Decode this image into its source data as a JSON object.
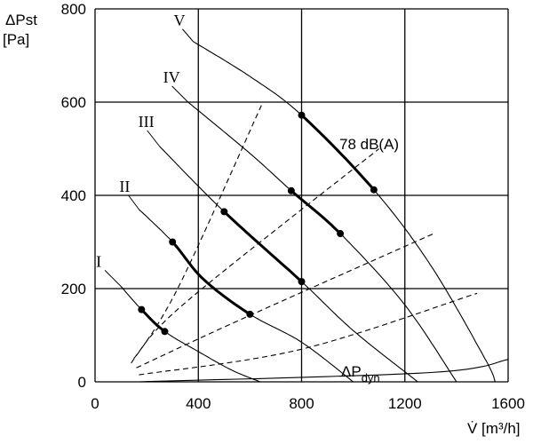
{
  "chart_data": {
    "type": "line",
    "xlabel": "V̇ [m³/h]",
    "ylabel_line1": "ΔPst",
    "ylabel_line2": "[Pa]",
    "xlim": [
      0,
      1600
    ],
    "ylim": [
      0,
      800
    ],
    "x_ticks": [
      0,
      400,
      800,
      1200,
      1600
    ],
    "y_ticks": [
      0,
      200,
      400,
      600,
      800
    ],
    "grid": true,
    "fan_curves": [
      {
        "name": "I",
        "points": [
          [
            100,
            205
          ],
          [
            180,
            155
          ],
          [
            270,
            108
          ],
          [
            400,
            65
          ],
          [
            530,
            25
          ],
          [
            640,
            0
          ]
        ],
        "bold_range": [
          180,
          270
        ]
      },
      {
        "name": "II",
        "points": [
          [
            170,
            370
          ],
          [
            300,
            300
          ],
          [
            420,
            220
          ],
          [
            600,
            145
          ],
          [
            800,
            85
          ],
          [
            1000,
            0
          ]
        ],
        "bold_range": [
          300,
          600
        ]
      },
      {
        "name": "III",
        "points": [
          [
            250,
            505
          ],
          [
            500,
            365
          ],
          [
            800,
            215
          ],
          [
            1000,
            110
          ],
          [
            1250,
            0
          ]
        ],
        "bold_range": [
          500,
          800
        ]
      },
      {
        "name": "IV",
        "points": [
          [
            360,
            600
          ],
          [
            600,
            490
          ],
          [
            760,
            410
          ],
          [
            950,
            318
          ],
          [
            1200,
            165
          ],
          [
            1400,
            0
          ]
        ],
        "bold_range": [
          760,
          950
        ]
      },
      {
        "name": "V",
        "points": [
          [
            380,
            730
          ],
          [
            600,
            655
          ],
          [
            800,
            572
          ],
          [
            1080,
            412
          ],
          [
            1300,
            250
          ],
          [
            1510,
            50
          ],
          [
            1550,
            0
          ]
        ],
        "bold_range": [
          800,
          1080
        ]
      }
    ],
    "system_curves": [
      {
        "points": [
          [
            140,
            40
          ],
          [
            320,
            200
          ],
          [
            650,
            600
          ]
        ]
      },
      {
        "points": [
          [
            150,
            50
          ],
          [
            350,
            170
          ],
          [
            1100,
            500
          ]
        ]
      },
      {
        "points": [
          [
            160,
            30
          ],
          [
            550,
            130
          ],
          [
            1320,
            320
          ]
        ]
      },
      {
        "points": [
          [
            170,
            15
          ],
          [
            800,
            70
          ],
          [
            1480,
            190
          ]
        ]
      },
      {
        "points": [
          [
            170,
            0
          ],
          [
            1300,
            20
          ],
          [
            1600,
            48
          ]
        ]
      }
    ],
    "operating_points": [
      [
        180,
        155
      ],
      [
        270,
        108
      ],
      [
        300,
        300
      ],
      [
        600,
        145
      ],
      [
        500,
        365
      ],
      [
        800,
        215
      ],
      [
        760,
        410
      ],
      [
        950,
        318
      ],
      [
        800,
        572
      ],
      [
        1080,
        412
      ]
    ],
    "annotations": {
      "noise_label": "78 dB(A)",
      "dyn_label_main": "ΔP",
      "dyn_label_sub": "dyn"
    }
  }
}
